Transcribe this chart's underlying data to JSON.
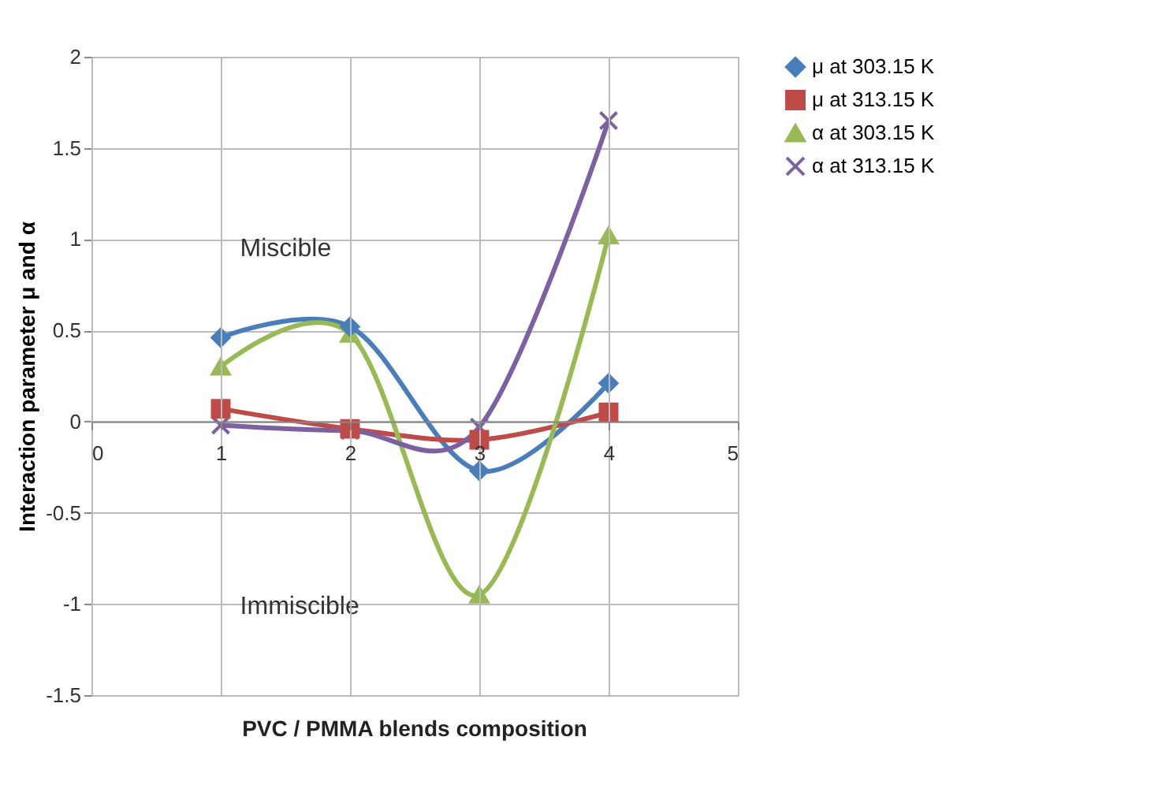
{
  "chart_data": {
    "type": "line",
    "xlabel": "PVC / PMMA blends composition",
    "ylabel": "Interaction parameter μ and α",
    "x": [
      1,
      2,
      3,
      4
    ],
    "series": [
      {
        "name": "μ at 303.15 K",
        "color": "#4a7ebb",
        "marker": "diamond",
        "values": [
          0.46,
          0.52,
          -0.27,
          0.21
        ]
      },
      {
        "name": "μ at 313.15 K",
        "color": "#be4b48",
        "marker": "square",
        "values": [
          0.07,
          -0.04,
          -0.1,
          0.05
        ]
      },
      {
        "name": "α at 303.15 K",
        "color": "#98b954",
        "marker": "triangle",
        "values": [
          0.3,
          0.48,
          -0.95,
          1.02
        ]
      },
      {
        "name": "α at 313.15 K",
        "color": "#7d60a0",
        "marker": "cross",
        "values": [
          -0.02,
          -0.05,
          -0.03,
          1.65
        ]
      }
    ],
    "xlim": [
      0,
      5
    ],
    "xticks": [
      0,
      1,
      2,
      3,
      4,
      5
    ],
    "ylim": [
      -1.5,
      2
    ],
    "yticks": [
      -1.5,
      -1,
      -0.5,
      0,
      0.5,
      1,
      1.5,
      2
    ],
    "annotations": [
      "Miscible",
      "Immiscible"
    ],
    "grid": true,
    "legend": "right",
    "line_style": "solid"
  }
}
